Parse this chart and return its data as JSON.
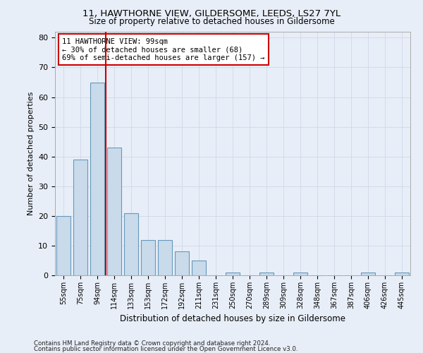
{
  "title_line1": "11, HAWTHORNE VIEW, GILDERSOME, LEEDS, LS27 7YL",
  "title_line2": "Size of property relative to detached houses in Gildersome",
  "xlabel": "Distribution of detached houses by size in Gildersome",
  "ylabel": "Number of detached properties",
  "categories": [
    "55sqm",
    "75sqm",
    "94sqm",
    "114sqm",
    "133sqm",
    "153sqm",
    "172sqm",
    "192sqm",
    "211sqm",
    "231sqm",
    "250sqm",
    "270sqm",
    "289sqm",
    "309sqm",
    "328sqm",
    "348sqm",
    "367sqm",
    "387sqm",
    "406sqm",
    "426sqm",
    "445sqm"
  ],
  "values": [
    20,
    39,
    65,
    43,
    21,
    12,
    12,
    8,
    5,
    0,
    1,
    0,
    1,
    0,
    1,
    0,
    0,
    0,
    1,
    0,
    1
  ],
  "bar_color": "#c9daea",
  "bar_edge_color": "#6699bb",
  "grid_color": "#d0d8e8",
  "background_color": "#e8eef8",
  "vline_color": "#cc0000",
  "annotation_text": "11 HAWTHORNE VIEW: 99sqm\n← 30% of detached houses are smaller (68)\n69% of semi-detached houses are larger (157) →",
  "annotation_box_color": "white",
  "annotation_box_edgecolor": "#cc0000",
  "ylim": [
    0,
    82
  ],
  "yticks": [
    0,
    10,
    20,
    30,
    40,
    50,
    60,
    70,
    80
  ],
  "footnote1": "Contains HM Land Registry data © Crown copyright and database right 2024.",
  "footnote2": "Contains public sector information licensed under the Open Government Licence v3.0."
}
